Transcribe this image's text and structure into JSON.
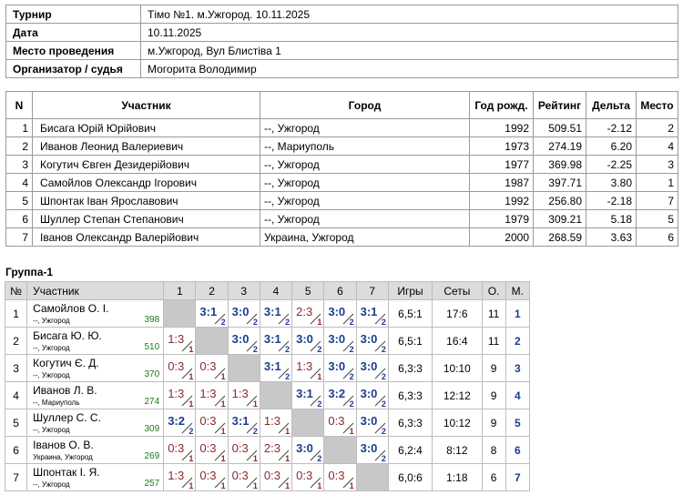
{
  "info": [
    {
      "label": "Турнир",
      "value": "Тімо №1. м.Ужгород. 10.11.2025"
    },
    {
      "label": "Дата",
      "value": "10.11.2025"
    },
    {
      "label": "Место проведения",
      "value": "м.Ужгород, Вул Блистіва 1"
    },
    {
      "label": "Организатор / судья",
      "value": "Могорита Володимир"
    }
  ],
  "players_headers": {
    "n": "N",
    "name": "Участник",
    "city": "Город",
    "year": "Год рожд.",
    "rating": "Рейтинг",
    "delta": "Дельта",
    "place": "Место"
  },
  "players": [
    {
      "n": "1",
      "name": "Бисага Юрій Юрійович",
      "city": "--, Ужгород",
      "year": "1992",
      "rating": "509.51",
      "delta": "-2.12",
      "place": "2"
    },
    {
      "n": "2",
      "name": "Иванов Леонид Валериевич",
      "city": "--, Мариуполь",
      "year": "1973",
      "rating": "274.19",
      "delta": "6.20",
      "place": "4"
    },
    {
      "n": "3",
      "name": "Когутич Євген Дезидерійович",
      "city": "--, Ужгород",
      "year": "1977",
      "rating": "369.98",
      "delta": "-2.25",
      "place": "3"
    },
    {
      "n": "4",
      "name": "Самойлов Олександр Ігорович",
      "city": "--, Ужгород",
      "year": "1987",
      "rating": "397.71",
      "delta": "3.80",
      "place": "1"
    },
    {
      "n": "5",
      "name": "Шпонтак Іван Ярославович",
      "city": "--, Ужгород",
      "year": "1992",
      "rating": "256.80",
      "delta": "-2.18",
      "place": "7"
    },
    {
      "n": "6",
      "name": "Шуллер Степан Степанович",
      "city": "--, Ужгород",
      "year": "1979",
      "rating": "309.21",
      "delta": "5.18",
      "place": "5"
    },
    {
      "n": "7",
      "name": "Іванов Олександр Валерійович",
      "city": "Украина, Ужгород",
      "year": "2000",
      "rating": "268.59",
      "delta": "3.63",
      "place": "6"
    }
  ],
  "group": {
    "title": "Группа-1",
    "headers": {
      "n": "№",
      "name": "Участник",
      "cols": [
        "1",
        "2",
        "3",
        "4",
        "5",
        "6",
        "7"
      ],
      "games": "Игры",
      "sets": "Сеты",
      "points": "О.",
      "place": "М."
    },
    "rows": [
      {
        "n": "1",
        "name": "Самойлов О. І.",
        "city": "--, Ужгород",
        "rating": "398",
        "results": [
          null,
          {
            "s": "3:1",
            "p": "2"
          },
          {
            "s": "3:0",
            "p": "2"
          },
          {
            "s": "3:1",
            "p": "2"
          },
          {
            "s": "2:3",
            "p": "1"
          },
          {
            "s": "3:0",
            "p": "2"
          },
          {
            "s": "3:1",
            "p": "2"
          }
        ],
        "games": "6,5:1",
        "sets": "17:6",
        "points": "11",
        "place": "1"
      },
      {
        "n": "2",
        "name": "Бисага Ю. Ю.",
        "city": "--, Ужгород",
        "rating": "510",
        "results": [
          {
            "s": "1:3",
            "p": "1"
          },
          null,
          {
            "s": "3:0",
            "p": "2"
          },
          {
            "s": "3:1",
            "p": "2"
          },
          {
            "s": "3:0",
            "p": "2"
          },
          {
            "s": "3:0",
            "p": "2"
          },
          {
            "s": "3:0",
            "p": "2"
          }
        ],
        "games": "6,5:1",
        "sets": "16:4",
        "points": "11",
        "place": "2"
      },
      {
        "n": "3",
        "name": "Когутич Є. Д.",
        "city": "--, Ужгород",
        "rating": "370",
        "results": [
          {
            "s": "0:3",
            "p": "1"
          },
          {
            "s": "0:3",
            "p": "1"
          },
          null,
          {
            "s": "3:1",
            "p": "2"
          },
          {
            "s": "1:3",
            "p": "1"
          },
          {
            "s": "3:0",
            "p": "2"
          },
          {
            "s": "3:0",
            "p": "2"
          }
        ],
        "games": "6,3:3",
        "sets": "10:10",
        "points": "9",
        "place": "3"
      },
      {
        "n": "4",
        "name": "Иванов Л. В.",
        "city": "--, Мариуполь",
        "rating": "274",
        "results": [
          {
            "s": "1:3",
            "p": "1"
          },
          {
            "s": "1:3",
            "p": "1"
          },
          {
            "s": "1:3",
            "p": "1"
          },
          null,
          {
            "s": "3:1",
            "p": "2"
          },
          {
            "s": "3:2",
            "p": "2"
          },
          {
            "s": "3:0",
            "p": "2"
          }
        ],
        "games": "6,3:3",
        "sets": "12:12",
        "points": "9",
        "place": "4"
      },
      {
        "n": "5",
        "name": "Шуллер С. С.",
        "city": "--, Ужгород",
        "rating": "309",
        "results": [
          {
            "s": "3:2",
            "p": "2"
          },
          {
            "s": "0:3",
            "p": "1"
          },
          {
            "s": "3:1",
            "p": "2"
          },
          {
            "s": "1:3",
            "p": "1"
          },
          null,
          {
            "s": "0:3",
            "p": "1"
          },
          {
            "s": "3:0",
            "p": "2"
          }
        ],
        "games": "6,3:3",
        "sets": "10:12",
        "points": "9",
        "place": "5"
      },
      {
        "n": "6",
        "name": "Іванов О. В.",
        "city": "Украина, Ужгород",
        "rating": "269",
        "results": [
          {
            "s": "0:3",
            "p": "1"
          },
          {
            "s": "0:3",
            "p": "1"
          },
          {
            "s": "0:3",
            "p": "1"
          },
          {
            "s": "2:3",
            "p": "1"
          },
          {
            "s": "3:0",
            "p": "2"
          },
          null,
          {
            "s": "3:0",
            "p": "2"
          }
        ],
        "games": "6,2:4",
        "sets": "8:12",
        "points": "8",
        "place": "6"
      },
      {
        "n": "7",
        "name": "Шпонтак І. Я.",
        "city": "--, Ужгород",
        "rating": "257",
        "results": [
          {
            "s": "1:3",
            "p": "1"
          },
          {
            "s": "0:3",
            "p": "1"
          },
          {
            "s": "0:3",
            "p": "1"
          },
          {
            "s": "0:3",
            "p": "1"
          },
          {
            "s": "0:3",
            "p": "1"
          },
          {
            "s": "0:3",
            "p": "1"
          },
          null
        ],
        "games": "6,0:6",
        "sets": "1:18",
        "points": "6",
        "place": "7"
      }
    ]
  }
}
